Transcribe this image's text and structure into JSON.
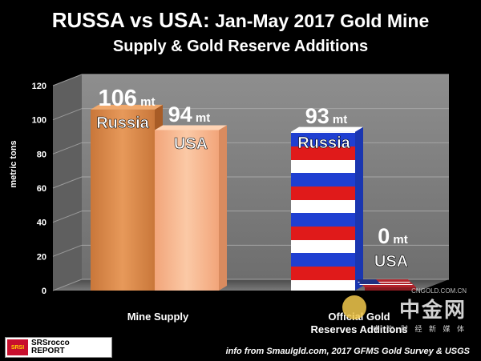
{
  "title_main": "RUSSA vs USA:",
  "title_rest": " Jan-May 2017 Gold Mine",
  "title_line2": "Supply & Gold Reserve Additions",
  "source": "info from Smaulgld.com, 2017 GFMS Gold Survey & USGS",
  "logo": {
    "badge": "SRSI",
    "line1": "SRSrocco",
    "line2": "REPORT"
  },
  "watermark": {
    "text": "中金网",
    "sub": "中 文 财 经 新 媒 体",
    "url": "CNGOLD.COM.CN"
  },
  "chart_data": {
    "type": "bar",
    "ylabel": "metric tons",
    "ylim": [
      0,
      120
    ],
    "yticks": [
      0,
      20,
      40,
      60,
      80,
      100,
      120
    ],
    "categories": [
      "Mine Supply",
      "Official Gold Reserves Additions"
    ],
    "series": [
      {
        "name": "Russia",
        "values": [
          106,
          93
        ],
        "value_labels": [
          "106 mt",
          "93 mt"
        ]
      },
      {
        "name": "USA",
        "values": [
          94,
          0
        ],
        "value_labels": [
          "94 mt",
          "0 mt"
        ]
      }
    ],
    "colors": {
      "russia_mine": "#e08c4a",
      "usa_mine": "#f5b58c",
      "wall": "#8a8a8a",
      "floor": "#5a5a5a"
    }
  }
}
